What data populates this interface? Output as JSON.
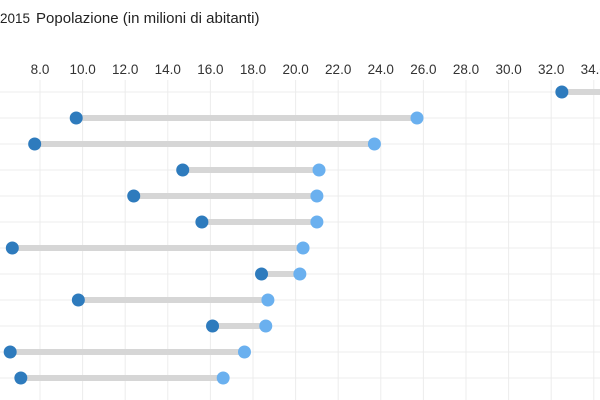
{
  "header": {
    "year_label": "2015",
    "title": "Popolazione (in milioni di abitanti)"
  },
  "colors": {
    "start_dot": "#2e7bbd",
    "end_dot": "#6ab0ef",
    "connector": "#d6d6d6",
    "grid": "#ececec"
  },
  "chart_data": {
    "type": "dumbbell",
    "title": "Popolazione (in milioni di abitanti)",
    "subtitle": "2015",
    "xlabel": "",
    "ylabel": "",
    "x_ticks": [
      "8.0",
      "10.0",
      "12.0",
      "14.0",
      "16.0",
      "18.0",
      "20.0",
      "22.0",
      "24.0",
      "26.0",
      "28.0",
      "30.0",
      "32.0",
      "34.0"
    ],
    "xlim": [
      6.1,
      34.7
    ],
    "grid": true,
    "legend": null,
    "rows": [
      {
        "start": 32.5,
        "end": 35.5
      },
      {
        "start": 9.7,
        "end": 25.7
      },
      {
        "start": 7.75,
        "end": 23.7
      },
      {
        "start": 14.7,
        "end": 21.1
      },
      {
        "start": 12.4,
        "end": 21.0
      },
      {
        "start": 15.6,
        "end": 21.0
      },
      {
        "start": 6.7,
        "end": 20.35
      },
      {
        "start": 18.4,
        "end": 20.2
      },
      {
        "start": 9.8,
        "end": 18.7
      },
      {
        "start": 16.1,
        "end": 18.6
      },
      {
        "start": 6.6,
        "end": 17.6
      },
      {
        "start": 7.1,
        "end": 16.6
      }
    ]
  }
}
